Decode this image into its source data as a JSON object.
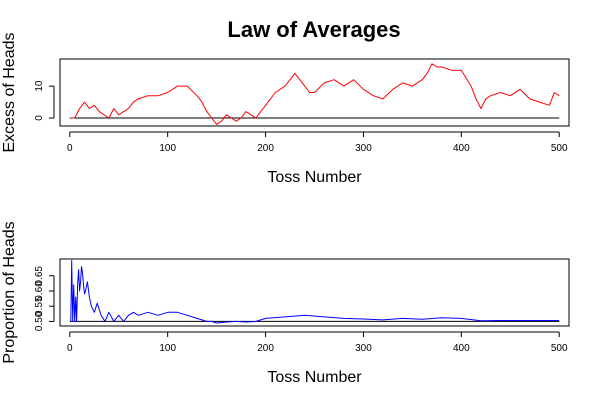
{
  "figure": {
    "title": "Law of Averages"
  },
  "chart_data": [
    {
      "type": "line",
      "title": "Law of Averages",
      "xlabel": "Toss Number",
      "ylabel": "Excess of Heads",
      "xlim": [
        -10,
        510
      ],
      "ylim": [
        -2.5,
        18.5
      ],
      "x_ticks": [
        0,
        100,
        200,
        300,
        400,
        500
      ],
      "x_tick_labels": [
        "0",
        "100",
        "200",
        "300",
        "400",
        "500"
      ],
      "y_ticks": [
        0,
        10
      ],
      "y_tick_labels": [
        "0",
        "10"
      ],
      "reference_line": {
        "y": 0,
        "color": "#000000"
      },
      "grid": false,
      "series": [
        {
          "color": "#ff0000",
          "x": [
            1,
            5,
            10,
            15,
            20,
            25,
            30,
            35,
            40,
            45,
            50,
            55,
            60,
            65,
            70,
            80,
            90,
            100,
            110,
            120,
            130,
            135,
            140,
            145,
            150,
            155,
            160,
            165,
            170,
            175,
            180,
            185,
            190,
            200,
            210,
            220,
            230,
            235,
            240,
            245,
            250,
            260,
            270,
            280,
            290,
            300,
            310,
            320,
            330,
            340,
            350,
            360,
            365,
            370,
            375,
            380,
            390,
            400,
            410,
            415,
            420,
            425,
            430,
            440,
            450,
            460,
            470,
            480,
            490,
            495,
            500
          ],
          "y": [
            0,
            0,
            3,
            5,
            3,
            4,
            2,
            1,
            0,
            3,
            1,
            2,
            3,
            5,
            6,
            7,
            7,
            8,
            10,
            10,
            7,
            5,
            2,
            0,
            -2,
            -1,
            1,
            0,
            -1,
            0,
            2,
            1,
            0,
            4,
            8,
            10,
            14,
            12,
            10,
            8,
            8,
            11,
            12,
            10,
            12,
            9,
            7,
            6,
            9,
            11,
            10,
            12,
            14,
            17,
            16,
            16,
            15,
            15,
            10,
            6,
            3,
            6,
            7,
            8,
            7,
            9,
            6,
            5,
            4,
            8,
            7
          ]
        }
      ]
    },
    {
      "type": "line",
      "xlabel": "Toss Number",
      "ylabel": "Proportion of Heads",
      "xlim": [
        -10,
        510
      ],
      "ylim": [
        0.485,
        0.705
      ],
      "x_ticks": [
        0,
        100,
        200,
        300,
        400,
        500
      ],
      "x_tick_labels": [
        "0",
        "100",
        "200",
        "300",
        "400",
        "500"
      ],
      "y_ticks": [
        0.5,
        0.55,
        0.6,
        0.65
      ],
      "y_tick_labels": [
        "0.50",
        "0.55",
        "0.60",
        "0.65"
      ],
      "reference_line": {
        "y": 0.5,
        "color": "#000000"
      },
      "grid": false,
      "series": [
        {
          "color": "#0000ff",
          "x": [
            1,
            2,
            3,
            4,
            5,
            6,
            7,
            8,
            9,
            10,
            11,
            12,
            13,
            14,
            15,
            16,
            18,
            20,
            22,
            25,
            28,
            32,
            36,
            40,
            45,
            50,
            55,
            60,
            65,
            70,
            80,
            90,
            100,
            110,
            120,
            130,
            140,
            145,
            150,
            160,
            170,
            180,
            190,
            200,
            220,
            240,
            260,
            280,
            300,
            320,
            340,
            360,
            380,
            400,
            420,
            440,
            460,
            480,
            500
          ],
          "y": [
            0.5,
            0.7,
            0.5,
            0.62,
            0.5,
            0.58,
            0.5,
            0.62,
            0.67,
            0.6,
            0.63,
            0.68,
            0.66,
            0.62,
            0.59,
            0.6,
            0.63,
            0.58,
            0.55,
            0.53,
            0.56,
            0.52,
            0.5,
            0.53,
            0.5,
            0.52,
            0.5,
            0.52,
            0.53,
            0.52,
            0.53,
            0.52,
            0.53,
            0.53,
            0.52,
            0.51,
            0.5,
            0.5,
            0.495,
            0.498,
            0.5,
            0.498,
            0.5,
            0.51,
            0.515,
            0.52,
            0.515,
            0.51,
            0.508,
            0.505,
            0.51,
            0.507,
            0.512,
            0.51,
            0.502,
            0.503,
            0.503,
            0.503,
            0.503
          ]
        }
      ]
    }
  ]
}
